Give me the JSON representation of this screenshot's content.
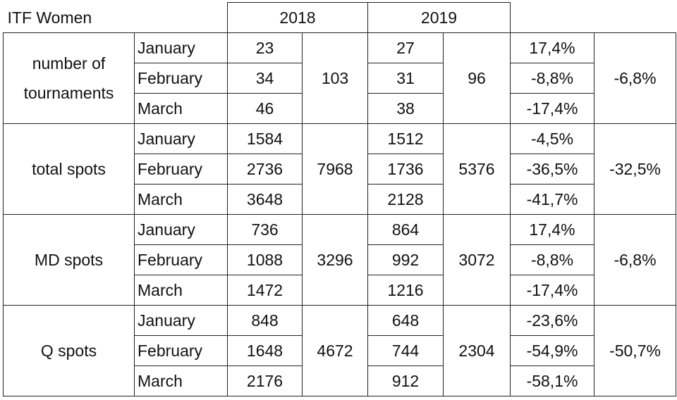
{
  "title": "ITF Women",
  "years": [
    "2018",
    "2019"
  ],
  "groups": [
    {
      "label": "number of tournaments",
      "rows": [
        {
          "month": "January",
          "y2018": "23",
          "y2019": "27",
          "change": "17,4%"
        },
        {
          "month": "February",
          "y2018": "34",
          "y2019": "31",
          "change": "-8,8%"
        },
        {
          "month": "March",
          "y2018": "46",
          "y2019": "38",
          "change": "-17,4%"
        }
      ],
      "total2018": "103",
      "total2019": "96",
      "total_change": "-6,8%"
    },
    {
      "label": "total spots",
      "rows": [
        {
          "month": "January",
          "y2018": "1584",
          "y2019": "1512",
          "change": "-4,5%"
        },
        {
          "month": "February",
          "y2018": "2736",
          "y2019": "1736",
          "change": "-36,5%"
        },
        {
          "month": "March",
          "y2018": "3648",
          "y2019": "2128",
          "change": "-41,7%"
        }
      ],
      "total2018": "7968",
      "total2019": "5376",
      "total_change": "-32,5%"
    },
    {
      "label": "MD spots",
      "rows": [
        {
          "month": "January",
          "y2018": "736",
          "y2019": "864",
          "change": "17,4%"
        },
        {
          "month": "February",
          "y2018": "1088",
          "y2019": "992",
          "change": "-8,8%"
        },
        {
          "month": "March",
          "y2018": "1472",
          "y2019": "1216",
          "change": "-17,4%"
        }
      ],
      "total2018": "3296",
      "total2019": "3072",
      "total_change": "-6,8%"
    },
    {
      "label": "Q spots",
      "rows": [
        {
          "month": "January",
          "y2018": "848",
          "y2019": "648",
          "change": "-23,6%"
        },
        {
          "month": "February",
          "y2018": "1648",
          "y2019": "744",
          "change": "-54,9%"
        },
        {
          "month": "March",
          "y2018": "2176",
          "y2019": "912",
          "change": "-58,1%"
        }
      ],
      "total2018": "4672",
      "total2019": "2304",
      "total_change": "-50,7%"
    }
  ]
}
